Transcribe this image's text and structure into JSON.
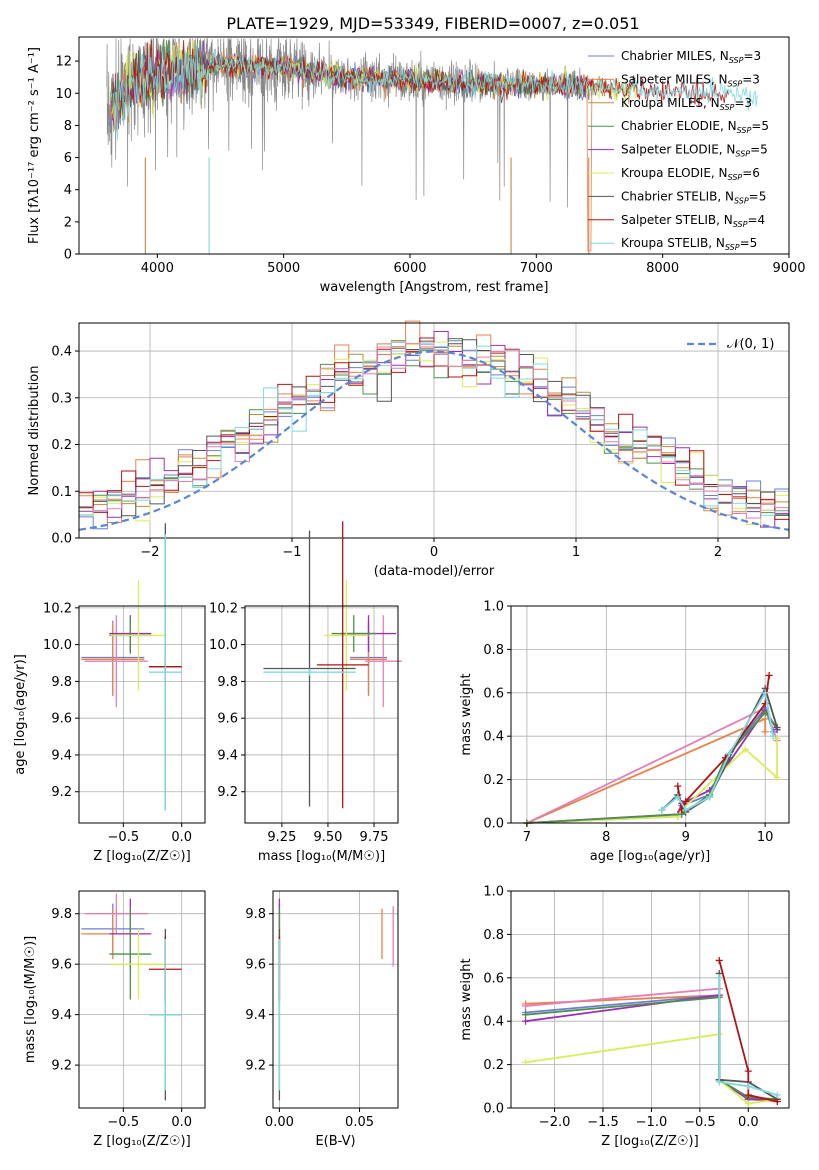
{
  "figure": {
    "title": "PLATE=1929, MJD=53349, FIBERID=0007, z=0.051"
  },
  "legend_series": [
    {
      "label": "Chabrier MILES, N$_{SSP}$=3",
      "color": "#6b7fd7",
      "text": "Chabrier MILES, N",
      "sub": "SSP",
      "tail": "=3"
    },
    {
      "label": "Salpeter MILES",
      "color": "#e8824a",
      "text": "Salpeter MILES, N",
      "sub": "SSP",
      "tail": "=3"
    },
    {
      "label": "Kroupa MILES",
      "color": "#c08a3e",
      "text": "Kroupa MILES, N",
      "sub": "SSP",
      "tail": "=3"
    },
    {
      "label": "Chabrier ELODIE",
      "color": "#4f8f4f",
      "text": "Chabrier ELODIE, N",
      "sub": "SSP",
      "tail": "=5"
    },
    {
      "label": "Salpeter ELODIE",
      "color": "#9b30b0",
      "text": "Salpeter ELODIE, N",
      "sub": "SSP",
      "tail": "=5"
    },
    {
      "label": "Kroupa ELODIE",
      "color": "#d9ec5a",
      "text": "Kroupa ELODIE, N",
      "sub": "SSP",
      "tail": "=6"
    },
    {
      "label": "Chabrier STELIB",
      "color": "#555555",
      "text": "Chabrier STELIB, N",
      "sub": "SSP",
      "tail": "=5"
    },
    {
      "label": "Salpeter STELIB",
      "color": "#b01515",
      "text": "Salpeter STELIB, N",
      "sub": "SSP",
      "tail": "=4"
    },
    {
      "label": "Kroupa STELIB",
      "color": "#7fd9e0",
      "text": "Kroupa STELIB, N",
      "sub": "SSP",
      "tail": "=5"
    }
  ],
  "extra_colors": {
    "pink": "#e37fb5",
    "gray_spec": "#888888"
  },
  "chart_data": [
    {
      "id": "spectrum",
      "type": "line",
      "xlabel": "wavelength [Angstrom, rest frame]",
      "ylabel": "Flux [f",
      "ylabel_full": "Flux [fλ10⁻¹⁷ erg cm⁻² s⁻¹ A⁻¹]",
      "xlim": [
        3380,
        9000
      ],
      "ylim": [
        0,
        13.5
      ],
      "xticks": [
        4000,
        5000,
        6000,
        7000,
        8000,
        9000
      ],
      "yticks": [
        0,
        2,
        4,
        6,
        8,
        10,
        12
      ],
      "data_range": [
        3600,
        8800
      ],
      "continuum": [
        [
          3600,
          8.5
        ],
        [
          3800,
          10.5
        ],
        [
          4000,
          11.2
        ],
        [
          4500,
          11.8
        ],
        [
          5000,
          11.6
        ],
        [
          5500,
          11.0
        ],
        [
          6000,
          10.8
        ],
        [
          6500,
          10.6
        ],
        [
          7000,
          10.5
        ],
        [
          7500,
          10.4
        ],
        [
          8000,
          10.1
        ],
        [
          8500,
          10.0
        ],
        [
          8800,
          9.8
        ]
      ],
      "grid": false
    },
    {
      "id": "residuals",
      "type": "histogram",
      "xlabel": "(data-model)/error",
      "ylabel": "Normed distribution",
      "xlim": [
        -2.5,
        2.5
      ],
      "ylim": [
        0,
        0.46
      ],
      "xticks": [
        -2,
        -1,
        0,
        1,
        2
      ],
      "yticks": [
        0.0,
        0.1,
        0.2,
        0.3,
        0.4
      ],
      "normal_label": "𝒩(0, 1)",
      "normal_color": "#5b86d6",
      "bin_width": 0.1,
      "grid": true
    },
    {
      "id": "age_vs_Z",
      "type": "errorbar",
      "xlabel": "Z [log₁₀(Z/Z☉)]",
      "ylabel": "age  [log₁₀(age/yr)]",
      "xlim": [
        -0.88,
        0.2
      ],
      "ylim": [
        9.03,
        10.21
      ],
      "xticks": [
        -0.5,
        0.0
      ],
      "yticks": [
        9.2,
        9.4,
        9.6,
        9.8,
        10.0,
        10.2
      ],
      "points": [
        {
          "x": -0.59,
          "y": 9.93,
          "xerr": 0.27,
          "yerr": 0.2,
          "color": "#6b7fd7"
        },
        {
          "x": -0.59,
          "y": 9.92,
          "xerr": 0.27,
          "yerr": 0.2,
          "color": "#e8824a"
        },
        {
          "x": -0.56,
          "y": 9.91,
          "xerr": 0.27,
          "yerr": 0.25,
          "color": "#e37fb5"
        },
        {
          "x": -0.44,
          "y": 10.06,
          "xerr": 0.18,
          "yerr": 0.1,
          "color": "#9b30b0"
        },
        {
          "x": -0.44,
          "y": 10.05,
          "xerr": 0.18,
          "yerr": 0.1,
          "color": "#4f8f4f"
        },
        {
          "x": -0.37,
          "y": 10.05,
          "xerr": 0.24,
          "yerr": 0.3,
          "color": "#d9ec5a"
        },
        {
          "x": -0.14,
          "y": 9.88,
          "xerr": 0.14,
          "yerr": 0.78,
          "color": "#555555"
        },
        {
          "x": -0.14,
          "y": 9.88,
          "xerr": 0.14,
          "yerr": 0.04,
          "color": "#b01515"
        },
        {
          "x": -0.14,
          "y": 9.85,
          "xerr": 0.14,
          "yerr": 0.75,
          "color": "#7fd9e0"
        }
      ],
      "grid": true
    },
    {
      "id": "age_vs_mass",
      "type": "errorbar",
      "xlabel": "mass [log₁₀(M/M☉)]",
      "ylabel": "",
      "xlim": [
        9.05,
        9.88
      ],
      "ylim": [
        9.03,
        10.21
      ],
      "xticks": [
        9.25,
        9.5,
        9.75
      ],
      "yticks": [
        9.2,
        9.4,
        9.6,
        9.8,
        10.0,
        10.2
      ],
      "points": [
        {
          "x": 9.72,
          "y": 9.93,
          "xerr": 0.1,
          "yerr": 0.2,
          "color": "#6b7fd7"
        },
        {
          "x": 9.72,
          "y": 9.92,
          "xerr": 0.1,
          "yerr": 0.2,
          "color": "#e8824a"
        },
        {
          "x": 9.8,
          "y": 9.91,
          "xerr": 0.1,
          "yerr": 0.25,
          "color": "#e37fb5"
        },
        {
          "x": 9.72,
          "y": 10.06,
          "xerr": 0.15,
          "yerr": 0.1,
          "color": "#9b30b0"
        },
        {
          "x": 9.64,
          "y": 10.06,
          "xerr": 0.12,
          "yerr": 0.1,
          "color": "#4f8f4f"
        },
        {
          "x": 9.6,
          "y": 10.05,
          "xerr": 0.12,
          "yerr": 0.3,
          "color": "#d9ec5a"
        },
        {
          "x": 9.4,
          "y": 9.87,
          "xerr": 0.25,
          "yerr": 0.75,
          "color": "#555555"
        },
        {
          "x": 9.58,
          "y": 9.89,
          "xerr": 0.14,
          "yerr": 0.78,
          "color": "#b01515"
        },
        {
          "x": 9.4,
          "y": 9.85,
          "xerr": 0.25,
          "yerr": 0.02,
          "color": "#7fd9e0"
        }
      ],
      "grid": true
    },
    {
      "id": "weight_vs_age",
      "type": "line",
      "xlabel": "age  [log₁₀(age/yr)]",
      "ylabel": "mass weight",
      "xlim": [
        6.8,
        10.3
      ],
      "ylim": [
        0,
        1.0
      ],
      "xticks": [
        7,
        8,
        9,
        10
      ],
      "yticks": [
        0.0,
        0.2,
        0.4,
        0.6,
        0.8,
        1.0
      ],
      "series": [
        {
          "color": "#e8824a",
          "x": [
            7.0,
            10.0,
            10.0
          ],
          "y": [
            0.0,
            0.48,
            0.42
          ]
        },
        {
          "color": "#e37fb5",
          "x": [
            7.0,
            10.0,
            10.15
          ],
          "y": [
            0.0,
            0.53,
            0.38
          ]
        },
        {
          "color": "#6b7fd7",
          "x": [
            7.0,
            8.9,
            8.95,
            9.3,
            9.5,
            10.0,
            10.1
          ],
          "y": [
            0.0,
            0.03,
            0.08,
            0.13,
            0.3,
            0.53,
            0.42
          ]
        },
        {
          "color": "#9b30b0",
          "x": [
            7.0,
            8.9,
            8.95,
            9.3,
            10.0,
            10.15
          ],
          "y": [
            0.0,
            0.04,
            0.09,
            0.15,
            0.52,
            0.43
          ]
        },
        {
          "color": "#d9ec5a",
          "x": [
            7.0,
            8.9,
            8.95,
            9.75,
            10.15,
            10.15
          ],
          "y": [
            0.0,
            0.03,
            0.06,
            0.34,
            0.21,
            0.39
          ]
        },
        {
          "color": "#4f8f4f",
          "x": [
            7.0,
            8.95,
            9.3,
            9.5,
            10.0,
            10.15
          ],
          "y": [
            0.0,
            0.04,
            0.13,
            0.3,
            0.51,
            0.44
          ]
        },
        {
          "color": "#555555",
          "x": [
            8.7,
            8.9,
            9.0,
            9.3,
            9.55,
            10.0,
            10.15
          ],
          "y": [
            0.06,
            0.13,
            0.05,
            0.12,
            0.3,
            0.62,
            0.44
          ]
        },
        {
          "color": "#b01515",
          "x": [
            8.9,
            8.95,
            9.0,
            9.5,
            10.0,
            10.05
          ],
          "y": [
            0.17,
            0.06,
            0.1,
            0.3,
            0.55,
            0.68
          ]
        },
        {
          "color": "#7fd9e0",
          "x": [
            8.7,
            8.9,
            9.0,
            9.3,
            9.55,
            10.0,
            10.1
          ],
          "y": [
            0.06,
            0.12,
            0.06,
            0.12,
            0.32,
            0.6,
            0.4
          ]
        }
      ],
      "grid": true
    },
    {
      "id": "mass_vs_Z",
      "type": "errorbar",
      "xlabel": "Z [log₁₀(Z/Z☉)]",
      "ylabel": "mass [log₁₀(M/M☉)]",
      "xlim": [
        -0.88,
        0.2
      ],
      "ylim": [
        9.03,
        9.89
      ],
      "xticks": [
        -0.5,
        0.0
      ],
      "yticks": [
        9.2,
        9.4,
        9.6,
        9.8
      ],
      "points": [
        {
          "x": -0.59,
          "y": 9.74,
          "xerr": 0.27,
          "yerr": 0.1,
          "color": "#6b7fd7"
        },
        {
          "x": -0.59,
          "y": 9.72,
          "xerr": 0.27,
          "yerr": 0.1,
          "color": "#e8824a"
        },
        {
          "x": -0.56,
          "y": 9.8,
          "xerr": 0.27,
          "yerr": 0.08,
          "color": "#e37fb5"
        },
        {
          "x": -0.44,
          "y": 9.72,
          "xerr": 0.18,
          "yerr": 0.14,
          "color": "#9b30b0"
        },
        {
          "x": -0.44,
          "y": 9.64,
          "xerr": 0.18,
          "yerr": 0.18,
          "color": "#4f8f4f"
        },
        {
          "x": -0.37,
          "y": 9.6,
          "xerr": 0.24,
          "yerr": 0.14,
          "color": "#d9ec5a"
        },
        {
          "x": -0.14,
          "y": 9.4,
          "xerr": 0.14,
          "yerr": 0.34,
          "color": "#555555"
        },
        {
          "x": -0.14,
          "y": 9.58,
          "xerr": 0.14,
          "yerr": 0.13,
          "color": "#b01515"
        },
        {
          "x": -0.14,
          "y": 9.4,
          "xerr": 0.14,
          "yerr": 0.3,
          "color": "#7fd9e0"
        }
      ],
      "grid": true
    },
    {
      "id": "mass_vs_ebv",
      "type": "errorbar",
      "xlabel": "E(B-V)",
      "ylabel": "",
      "xlim": [
        -0.004,
        0.074
      ],
      "ylim": [
        9.03,
        9.89
      ],
      "xticks": [
        0.0,
        0.05
      ],
      "yticks": [
        9.2,
        9.4,
        9.6,
        9.8
      ],
      "points": [
        {
          "x": 0.0,
          "y": 9.74,
          "xerr": 0,
          "yerr": 0.1,
          "color": "#6b7fd7"
        },
        {
          "x": 0.064,
          "y": 9.72,
          "xerr": 0,
          "yerr": 0.1,
          "color": "#e8824a"
        },
        {
          "x": 0.071,
          "y": 9.71,
          "xerr": 0,
          "yerr": 0.12,
          "color": "#e37fb5"
        },
        {
          "x": 0.0,
          "y": 9.72,
          "xerr": 0,
          "yerr": 0.14,
          "color": "#9b30b0"
        },
        {
          "x": 0.0,
          "y": 9.64,
          "xerr": 0,
          "yerr": 0.18,
          "color": "#4f8f4f"
        },
        {
          "x": 0.0,
          "y": 9.6,
          "xerr": 0,
          "yerr": 0.14,
          "color": "#d9ec5a"
        },
        {
          "x": 0.0,
          "y": 9.4,
          "xerr": 0,
          "yerr": 0.34,
          "color": "#555555"
        },
        {
          "x": 0.0,
          "y": 9.58,
          "xerr": 0,
          "yerr": 0.13,
          "color": "#b01515"
        },
        {
          "x": 0.0,
          "y": 9.4,
          "xerr": 0,
          "yerr": 0.3,
          "color": "#7fd9e0"
        }
      ],
      "grid": true
    },
    {
      "id": "weight_vs_Z",
      "type": "line",
      "xlabel": "Z [log₁₀(Z/Z☉)]",
      "ylabel": "mass weight",
      "xlim": [
        -2.45,
        0.42
      ],
      "ylim": [
        0,
        1.0
      ],
      "xticks": [
        -2.0,
        -1.5,
        -1.0,
        -0.5,
        0.0
      ],
      "yticks": [
        0.0,
        0.2,
        0.4,
        0.6,
        0.8,
        1.0
      ],
      "series": [
        {
          "color": "#e8824a",
          "x": [
            -2.3,
            -0.3,
            -0.3,
            0.0,
            0.3
          ],
          "y": [
            0.48,
            0.52,
            0.13,
            0.04,
            0.03
          ]
        },
        {
          "color": "#e37fb5",
          "x": [
            -2.3,
            -0.3,
            -0.3,
            0.0,
            0.3
          ],
          "y": [
            0.47,
            0.55,
            0.13,
            0.04,
            0.04
          ]
        },
        {
          "color": "#6b7fd7",
          "x": [
            -2.3,
            -0.3,
            -0.3,
            0.0,
            0.3
          ],
          "y": [
            0.44,
            0.52,
            0.13,
            0.04,
            0.04
          ]
        },
        {
          "color": "#9b30b0",
          "x": [
            -2.3,
            -0.3,
            -0.3,
            0.0,
            0.3
          ],
          "y": [
            0.4,
            0.52,
            0.13,
            0.04,
            0.04
          ]
        },
        {
          "color": "#d9ec5a",
          "x": [
            -2.3,
            -0.3,
            -0.3,
            0.0,
            0.3
          ],
          "y": [
            0.21,
            0.34,
            0.13,
            0.02,
            0.04
          ]
        },
        {
          "color": "#4f8f4f",
          "x": [
            -2.3,
            -0.3,
            -0.3,
            0.0,
            0.3
          ],
          "y": [
            0.43,
            0.51,
            0.13,
            0.05,
            0.04
          ]
        },
        {
          "color": "#555555",
          "x": [
            -0.3,
            -0.3,
            0.0,
            0.3
          ],
          "y": [
            0.62,
            0.13,
            0.12,
            0.04
          ]
        },
        {
          "color": "#b01515",
          "x": [
            -0.3,
            0.0,
            0.0,
            0.3
          ],
          "y": [
            0.68,
            0.17,
            0.06,
            0.03
          ]
        },
        {
          "color": "#7fd9e0",
          "x": [
            -0.3,
            -0.3,
            0.0,
            0.3
          ],
          "y": [
            0.6,
            0.12,
            0.1,
            0.06
          ]
        }
      ],
      "grid": true
    }
  ]
}
